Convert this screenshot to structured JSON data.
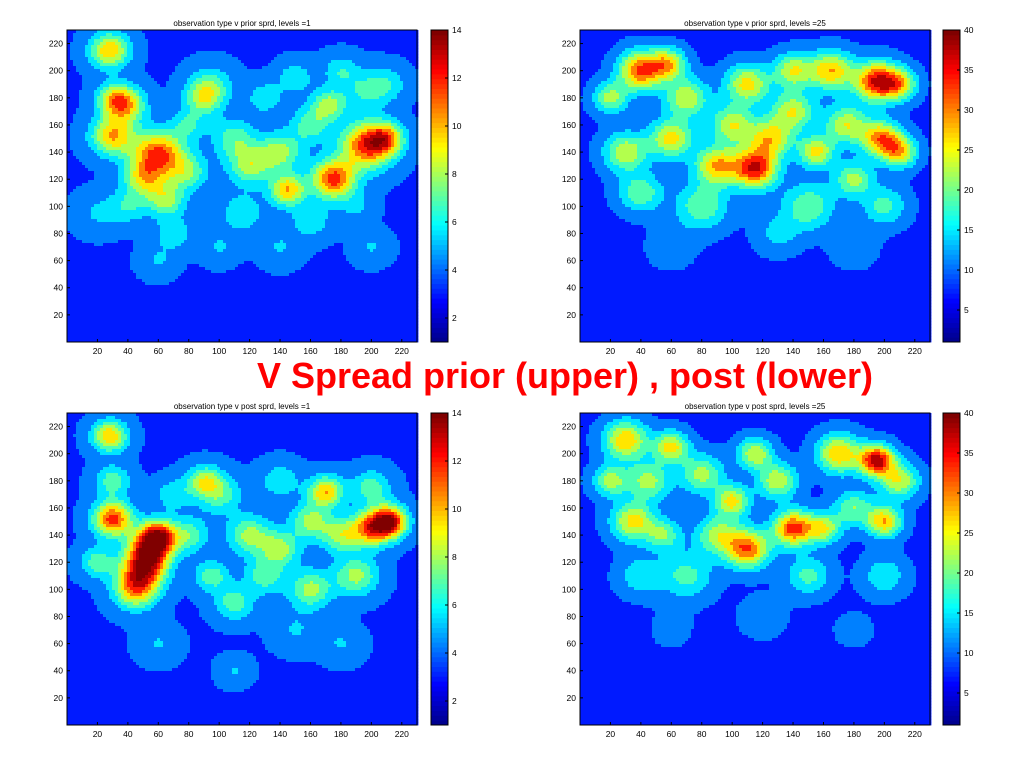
{
  "slide_title": "V Spread prior (upper) , post (lower)",
  "colormap": [
    "#00008f",
    "#0000ff",
    "#0080ff",
    "#00ffff",
    "#80ff80",
    "#ffff00",
    "#ff8000",
    "#ff0000",
    "#800000"
  ],
  "chart_data": [
    {
      "type": "heatmap",
      "title": "observation type v prior sprd, levels =1",
      "xlim": [
        0,
        230
      ],
      "ylim": [
        0,
        230
      ],
      "xticks": [
        20,
        40,
        60,
        80,
        100,
        120,
        140,
        160,
        180,
        200,
        220
      ],
      "yticks": [
        20,
        40,
        60,
        80,
        100,
        120,
        140,
        160,
        180,
        200,
        220
      ],
      "clim": [
        1,
        14
      ],
      "cbar_ticks": [
        2,
        4,
        6,
        8,
        10,
        12,
        14
      ],
      "background": 3.5,
      "blobs": [
        [
          28,
          215,
          9,
          10
        ],
        [
          38,
          175,
          9,
          10
        ],
        [
          30,
          152,
          10,
          10
        ],
        [
          60,
          138,
          12,
          12
        ],
        [
          50,
          120,
          9,
          8
        ],
        [
          65,
          105,
          9,
          8
        ],
        [
          80,
          125,
          9,
          7
        ],
        [
          90,
          180,
          9,
          8
        ],
        [
          120,
          130,
          10,
          8
        ],
        [
          140,
          140,
          10,
          8
        ],
        [
          145,
          112,
          8,
          10
        ],
        [
          175,
          120,
          10,
          12
        ],
        [
          172,
          175,
          8,
          8
        ],
        [
          197,
          145,
          12,
          12
        ],
        [
          210,
          150,
          8,
          9
        ],
        [
          195,
          185,
          10,
          6
        ],
        [
          115,
          95,
          10,
          6
        ],
        [
          160,
          90,
          9,
          6
        ],
        [
          40,
          100,
          9,
          6
        ],
        [
          95,
          190,
          10,
          6
        ],
        [
          130,
          180,
          8,
          6
        ],
        [
          150,
          195,
          8,
          6
        ],
        [
          180,
          200,
          8,
          6
        ],
        [
          210,
          190,
          9,
          6
        ],
        [
          80,
          160,
          8,
          6
        ],
        [
          30,
          180,
          8,
          7
        ],
        [
          20,
          95,
          10,
          5
        ],
        [
          190,
          100,
          8,
          5
        ],
        [
          100,
          70,
          8,
          5
        ],
        [
          140,
          70,
          9,
          5
        ],
        [
          60,
          60,
          8,
          5
        ],
        [
          70,
          80,
          8,
          6
        ],
        [
          200,
          70,
          8,
          5
        ],
        [
          110,
          150,
          10,
          7
        ],
        [
          160,
          160,
          9,
          7
        ]
      ]
    },
    {
      "type": "heatmap",
      "title": "observation type v prior sprd, levels =25",
      "xlim": [
        0,
        230
      ],
      "ylim": [
        0,
        230
      ],
      "xticks": [
        20,
        40,
        60,
        80,
        100,
        120,
        140,
        160,
        180,
        200,
        220
      ],
      "yticks": [
        20,
        40,
        60,
        80,
        100,
        120,
        140,
        160,
        180,
        200,
        220
      ],
      "clim": [
        1,
        40
      ],
      "cbar_ticks": [
        5,
        10,
        15,
        20,
        25,
        30,
        35,
        40
      ],
      "background": 8,
      "blobs": [
        [
          40,
          200,
          10,
          33
        ],
        [
          58,
          205,
          8,
          26
        ],
        [
          30,
          140,
          10,
          24
        ],
        [
          60,
          150,
          10,
          26
        ],
        [
          70,
          180,
          10,
          24
        ],
        [
          90,
          130,
          10,
          28
        ],
        [
          115,
          128,
          10,
          36
        ],
        [
          125,
          150,
          10,
          26
        ],
        [
          140,
          170,
          10,
          24
        ],
        [
          155,
          140,
          8,
          26
        ],
        [
          165,
          200,
          10,
          28
        ],
        [
          175,
          160,
          10,
          24
        ],
        [
          195,
          192,
          10,
          36
        ],
        [
          198,
          150,
          9,
          30
        ],
        [
          210,
          140,
          8,
          26
        ],
        [
          100,
          160,
          10,
          24
        ],
        [
          80,
          100,
          12,
          20
        ],
        [
          150,
          100,
          12,
          20
        ],
        [
          200,
          100,
          10,
          18
        ],
        [
          40,
          110,
          10,
          20
        ],
        [
          130,
          80,
          10,
          14
        ],
        [
          60,
          70,
          10,
          12
        ],
        [
          180,
          70,
          10,
          12
        ],
        [
          110,
          190,
          10,
          26
        ],
        [
          140,
          200,
          9,
          24
        ],
        [
          210,
          190,
          8,
          24
        ],
        [
          20,
          180,
          8,
          22
        ],
        [
          180,
          120,
          9,
          22
        ]
      ]
    },
    {
      "type": "heatmap",
      "title": "observation type v post sprd, levels =1",
      "xlim": [
        0,
        230
      ],
      "ylim": [
        0,
        230
      ],
      "xticks": [
        20,
        40,
        60,
        80,
        100,
        120,
        140,
        160,
        180,
        200,
        220
      ],
      "yticks": [
        20,
        40,
        60,
        80,
        100,
        120,
        140,
        160,
        180,
        200,
        220
      ],
      "clim": [
        1,
        14
      ],
      "cbar_ticks": [
        2,
        4,
        6,
        8,
        10,
        12,
        14
      ],
      "background": 3.5,
      "blobs": [
        [
          28,
          213,
          8,
          10
        ],
        [
          30,
          152,
          9,
          12
        ],
        [
          55,
          130,
          10,
          12
        ],
        [
          50,
          115,
          10,
          11
        ],
        [
          45,
          100,
          10,
          10
        ],
        [
          60,
          140,
          8,
          11
        ],
        [
          90,
          180,
          8,
          8
        ],
        [
          120,
          140,
          10,
          8
        ],
        [
          140,
          130,
          9,
          8
        ],
        [
          170,
          172,
          8,
          10
        ],
        [
          180,
          140,
          9,
          8
        ],
        [
          200,
          145,
          9,
          11
        ],
        [
          212,
          150,
          8,
          13
        ],
        [
          160,
          100,
          10,
          8
        ],
        [
          190,
          110,
          10,
          8
        ],
        [
          110,
          90,
          9,
          7
        ],
        [
          80,
          140,
          9,
          7
        ],
        [
          100,
          170,
          10,
          7
        ],
        [
          140,
          180,
          9,
          6
        ],
        [
          200,
          175,
          9,
          7
        ],
        [
          30,
          180,
          8,
          7
        ],
        [
          60,
          60,
          9,
          5
        ],
        [
          150,
          70,
          10,
          5
        ],
        [
          95,
          110,
          8,
          7
        ],
        [
          130,
          110,
          9,
          7
        ],
        [
          70,
          170,
          8,
          6
        ],
        [
          20,
          120,
          8,
          7
        ],
        [
          110,
          40,
          7,
          5
        ],
        [
          180,
          60,
          9,
          5
        ],
        [
          160,
          150,
          9,
          8
        ]
      ]
    },
    {
      "type": "heatmap",
      "title": "observation type v post sprd, levels =25",
      "xlim": [
        0,
        230
      ],
      "ylim": [
        0,
        230
      ],
      "xticks": [
        20,
        40,
        60,
        80,
        100,
        120,
        140,
        160,
        180,
        200,
        220
      ],
      "yticks": [
        20,
        40,
        60,
        80,
        100,
        120,
        140,
        160,
        180,
        200,
        220
      ],
      "clim": [
        1,
        40
      ],
      "cbar_ticks": [
        5,
        10,
        15,
        20,
        25,
        30,
        35,
        40
      ],
      "background": 8,
      "blobs": [
        [
          30,
          210,
          10,
          28
        ],
        [
          60,
          205,
          8,
          26
        ],
        [
          35,
          150,
          10,
          26
        ],
        [
          55,
          140,
          8,
          20
        ],
        [
          80,
          185,
          10,
          22
        ],
        [
          110,
          130,
          10,
          32
        ],
        [
          100,
          165,
          8,
          26
        ],
        [
          140,
          145,
          9,
          34
        ],
        [
          160,
          145,
          8,
          24
        ],
        [
          170,
          200,
          10,
          28
        ],
        [
          195,
          195,
          8,
          38
        ],
        [
          200,
          150,
          8,
          28
        ],
        [
          210,
          180,
          9,
          24
        ],
        [
          130,
          180,
          9,
          24
        ],
        [
          90,
          140,
          10,
          22
        ],
        [
          70,
          110,
          12,
          18
        ],
        [
          150,
          110,
          10,
          18
        ],
        [
          200,
          110,
          10,
          16
        ],
        [
          40,
          110,
          10,
          16
        ],
        [
          120,
          80,
          10,
          12
        ],
        [
          60,
          70,
          10,
          10
        ],
        [
          180,
          70,
          10,
          10
        ],
        [
          115,
          200,
          8,
          24
        ],
        [
          20,
          180,
          8,
          22
        ],
        [
          180,
          160,
          9,
          20
        ],
        [
          45,
          180,
          10,
          22
        ]
      ]
    }
  ]
}
